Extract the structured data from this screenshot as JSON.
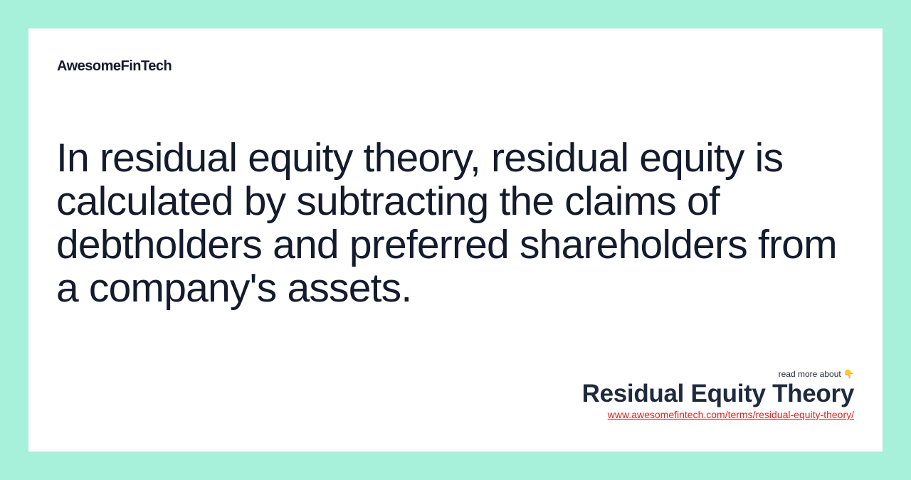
{
  "brand": {
    "name": "AwesomeFinTech"
  },
  "main": {
    "quote": "In residual equity theory, residual equity is calculated by subtracting the claims of debtholders and preferred shareholders from a company's assets."
  },
  "footer": {
    "read_more": "read more about",
    "pointer_emoji": "👇",
    "topic": "Residual Equity Theory",
    "url": "www.awesomefintech.com/terms/residual-equity-theory/"
  },
  "colors": {
    "background": "#a7f0d9",
    "card": "#ffffff",
    "text": "#141b2d",
    "link": "#dc2626"
  }
}
